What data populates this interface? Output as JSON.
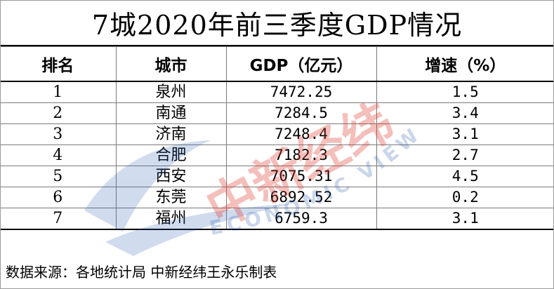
{
  "title": "7城2020年前三季度GDP情况",
  "table": {
    "headers": [
      "排名",
      "城市",
      "GDP（亿元）",
      "增速（%）"
    ],
    "rows": [
      {
        "rank": "1",
        "city": "泉州",
        "gdp": "7472.25",
        "growth": "1.5"
      },
      {
        "rank": "2",
        "city": "南通",
        "gdp": "7284.5",
        "growth": "3.4"
      },
      {
        "rank": "3",
        "city": "济南",
        "gdp": "7248.4",
        "growth": "3.1"
      },
      {
        "rank": "4",
        "city": "合肥",
        "gdp": "7182.3",
        "growth": "2.7"
      },
      {
        "rank": "5",
        "city": "西安",
        "gdp": "7075.31",
        "growth": "4.5"
      },
      {
        "rank": "6",
        "city": "东莞",
        "gdp": "6892.52",
        "growth": "0.2"
      },
      {
        "rank": "7",
        "city": "福州",
        "gdp": "6759.3",
        "growth": "3.1"
      }
    ]
  },
  "source": "数据来源：各地统计局 中新经纬王永乐制表",
  "watermark": {
    "logo_text": "中新经纬",
    "arc_text": "ECONOMIC VIEW",
    "red": "#e03a2e",
    "blue": "#2d5fb4"
  }
}
